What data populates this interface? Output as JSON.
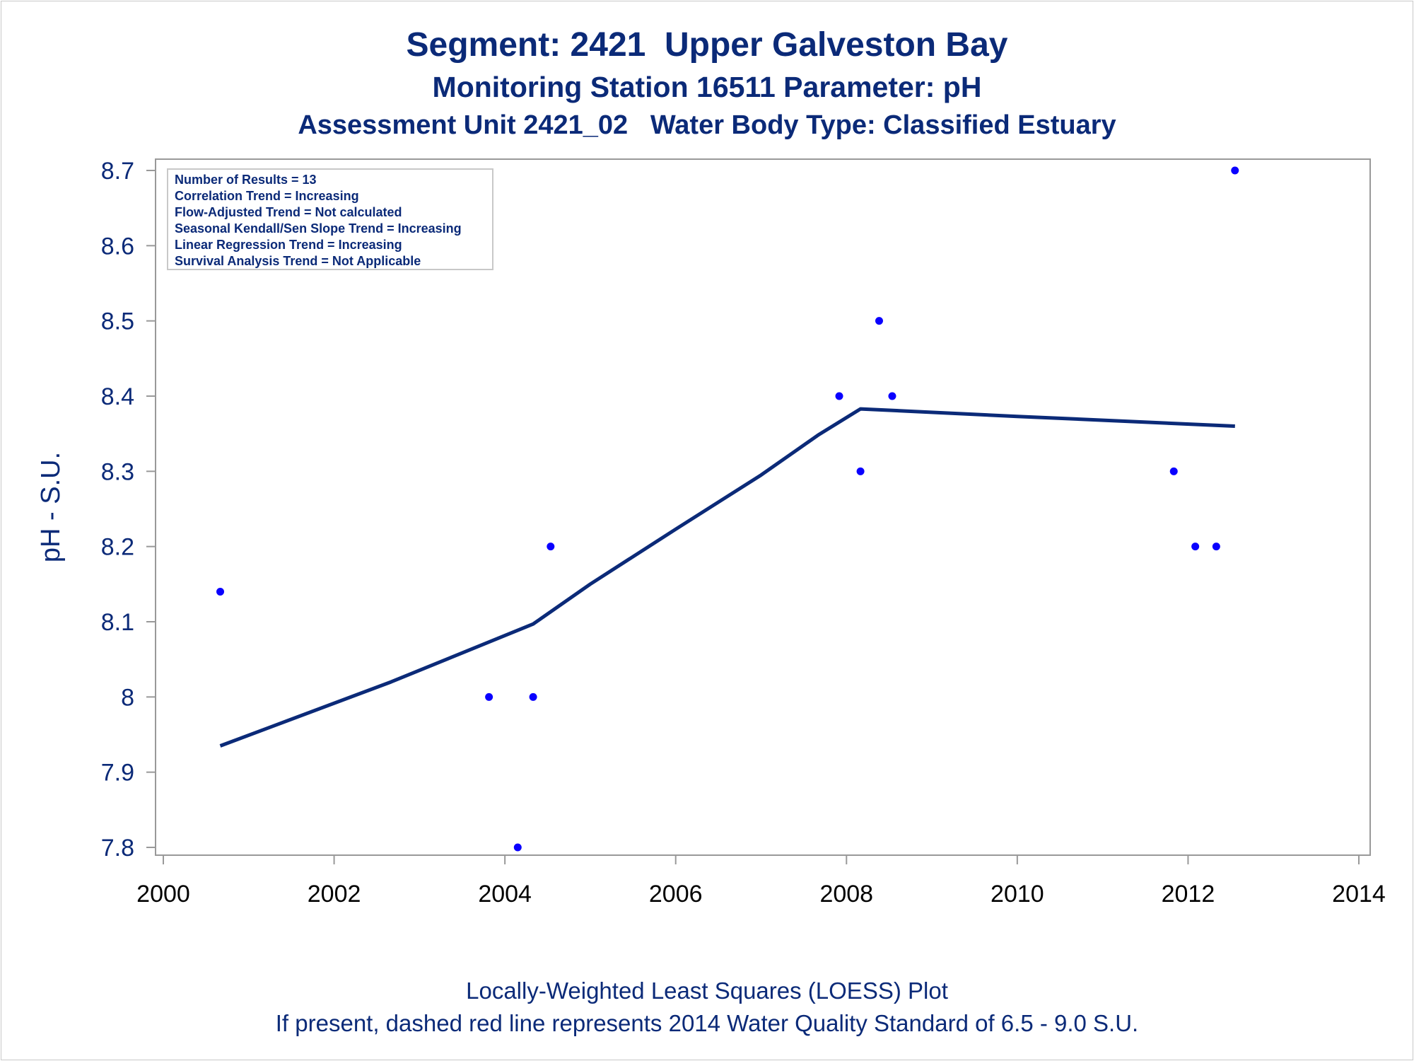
{
  "chart_data": {
    "type": "scatter",
    "title": "Segment: 2421  Upper Galveston Bay",
    "subtitle": "Monitoring Station 16511 Parameter: pH",
    "subtitle2": "Assessment Unit 2421_02   Water Body Type: Classified Estuary",
    "xlabel": "",
    "ylabel": "pH - S.U.",
    "xlim": [
      2000,
      2014
    ],
    "ylim": [
      7.8,
      8.7
    ],
    "x_ticks": [
      "2000",
      "2002",
      "2004",
      "2006",
      "2008",
      "2010",
      "2012",
      "2014"
    ],
    "y_ticks": [
      "7.8",
      "7.9",
      "8",
      "8.1",
      "8.2",
      "8.3",
      "8.4",
      "8.5",
      "8.6",
      "8.7"
    ],
    "grid": false,
    "legend": "none",
    "stats_box": [
      "Number of Results = 13",
      "Correlation Trend = Increasing",
      "Flow-Adjusted Trend = Not calculated",
      "Seasonal Kendall/Sen Slope Trend = Increasing",
      "Linear Regression Trend = Increasing",
      "Survival Analysis Trend = Not Applicable"
    ],
    "points": [
      {
        "x": "2000-09-01",
        "y": 8.14
      },
      {
        "x": "2003-10-25",
        "y": 8.0
      },
      {
        "x": "2004-02-25",
        "y": 7.8
      },
      {
        "x": "2004-05-01",
        "y": 8.0
      },
      {
        "x": "2004-07-15",
        "y": 8.2
      },
      {
        "x": "2007-12-01",
        "y": 8.4
      },
      {
        "x": "2008-03-01",
        "y": 8.3
      },
      {
        "x": "2008-05-20",
        "y": 8.5
      },
      {
        "x": "2008-07-15",
        "y": 8.4
      },
      {
        "x": "2011-11-01",
        "y": 8.3
      },
      {
        "x": "2012-02-01",
        "y": 8.2
      },
      {
        "x": "2012-05-01",
        "y": 8.2
      },
      {
        "x": "2012-07-20",
        "y": 8.7
      }
    ],
    "loess_line": [
      {
        "x": "2000-09-01",
        "y": 7.935
      },
      {
        "x": "2002-09-01",
        "y": 8.02
      },
      {
        "x": "2004-05-01",
        "y": 8.097
      },
      {
        "x": "2005-01-01",
        "y": 8.15
      },
      {
        "x": "2006-01-01",
        "y": 8.223
      },
      {
        "x": "2007-01-01",
        "y": 8.295
      },
      {
        "x": "2007-09-01",
        "y": 8.348
      },
      {
        "x": "2008-03-01",
        "y": 8.383
      },
      {
        "x": "2010-01-01",
        "y": 8.373
      },
      {
        "x": "2012-07-20",
        "y": 8.36
      }
    ],
    "marker_color": "#0a00ff",
    "line_color": "#0b2a78",
    "axis_color": "#999999",
    "text_color": "#0b2a78",
    "footnotes": [
      "Locally-Weighted Least Squares (LOESS) Plot",
      "If present, dashed red line represents 2014 Water Quality Standard of 6.5 - 9.0 S.U."
    ]
  }
}
